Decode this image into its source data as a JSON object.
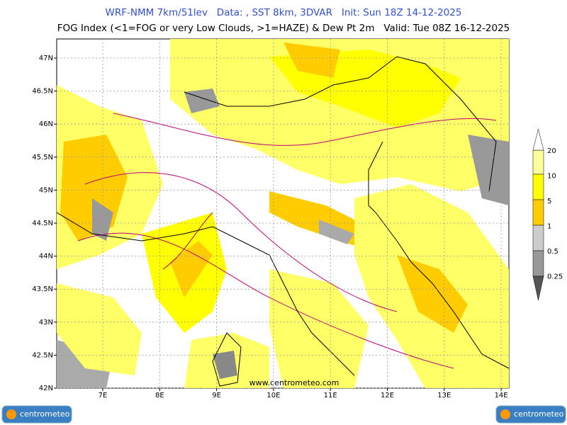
{
  "header": {
    "title": "WRF-NMM 7km/51lev   Data: , SST 8km, 3DVAR   Init: Sun 18Z 14-12-2025",
    "subtitle": "FOG Index (<1=FOG or very Low Clouds, >1=HAZE) & Dew Pt 2m   Valid: Tue 08Z 16-12-2025"
  },
  "map": {
    "lat_labels": [
      "47N",
      "46.5N",
      "46N",
      "45.5N",
      "45N",
      "44.5N",
      "44N",
      "43.5N",
      "43N",
      "42.5N",
      "42N"
    ],
    "lon_labels": [
      "7E",
      "8E",
      "9E",
      "10E",
      "11E",
      "12E",
      "13E",
      "14E"
    ],
    "watermark": "www.centrometeo.com"
  },
  "colorbar": {
    "labels": [
      "20",
      "10",
      "5",
      "1",
      "0.5",
      "0.25"
    ]
  },
  "footer": {
    "logo_text": "centrometeo"
  }
}
